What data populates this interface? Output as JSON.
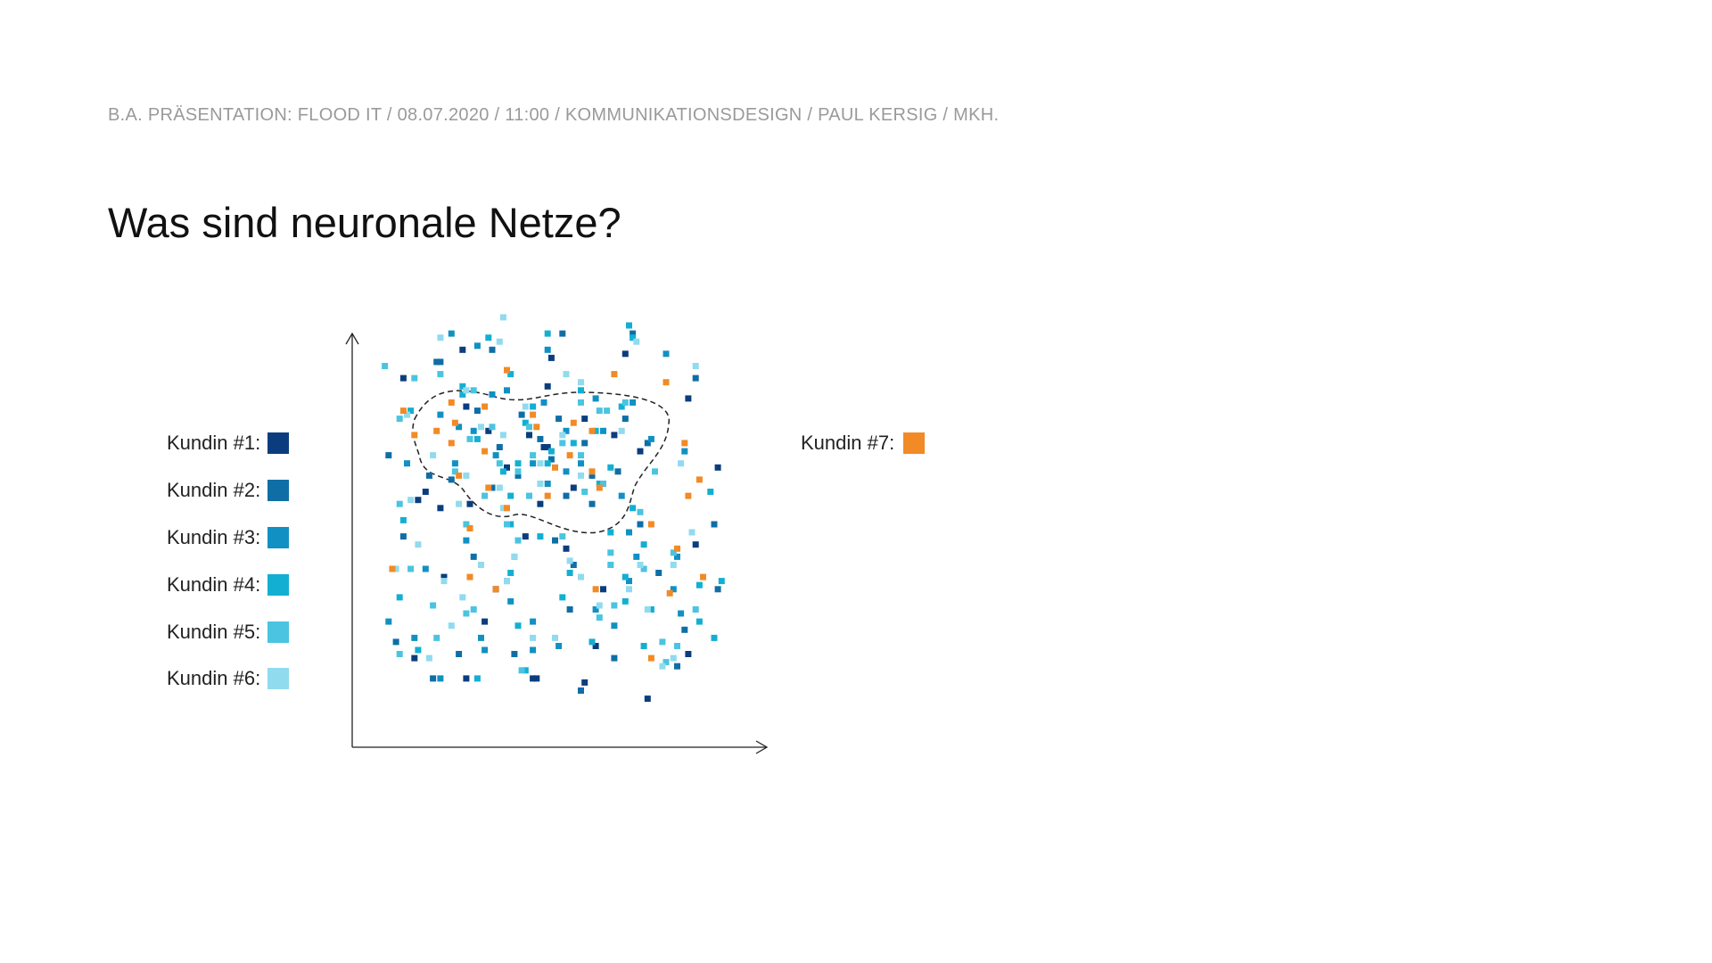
{
  "header": {
    "text": "B.A. PRÄSENTATION: FLOOD IT / 08.07.2020 / 11:00 / KOMMUNIKATIONSDESIGN / PAUL KERSIG / MKH."
  },
  "title": "Was sind neuronale Netze?",
  "legend": [
    {
      "label": "Kundin #1:",
      "color": "#0b3d7e"
    },
    {
      "label": "Kundin #2:",
      "color": "#0f6ea6"
    },
    {
      "label": "Kundin #3:",
      "color": "#1190c3"
    },
    {
      "label": "Kundin #4:",
      "color": "#13afd3"
    },
    {
      "label": "Kundin #5:",
      "color": "#4ac4e0"
    },
    {
      "label": "Kundin #6:",
      "color": "#90dbee"
    }
  ],
  "legend_highlight": {
    "label": "Kundin #7:",
    "color": "#f28a26"
  },
  "chart_data": {
    "type": "scatter",
    "title": "",
    "xlabel": "",
    "ylabel": "",
    "xlim": [
      0,
      100
    ],
    "ylim": [
      0,
      100
    ],
    "grid": false,
    "legend_placement": "left",
    "cluster_outline": "dashed closed curve around central cluster",
    "series": [
      {
        "name": "Kundin #1",
        "points": [
          [
            9,
            87
          ],
          [
            25,
            94
          ],
          [
            49,
            92
          ],
          [
            69,
            93
          ],
          [
            26,
            80
          ],
          [
            48,
            85
          ],
          [
            86,
            82
          ],
          [
            32,
            74
          ],
          [
            43,
            73
          ],
          [
            58,
            77
          ],
          [
            66,
            73
          ],
          [
            47,
            70
          ],
          [
            73,
            69
          ],
          [
            15,
            59
          ],
          [
            37,
            65
          ],
          [
            55,
            60
          ],
          [
            19,
            55
          ],
          [
            13,
            57
          ],
          [
            46,
            56
          ],
          [
            94,
            65
          ],
          [
            27,
            56
          ],
          [
            88,
            46
          ],
          [
            42,
            48
          ],
          [
            53,
            45
          ],
          [
            20,
            38
          ],
          [
            34,
            35
          ],
          [
            63,
            35
          ],
          [
            31,
            27
          ],
          [
            12,
            18
          ],
          [
            61,
            21
          ],
          [
            26,
            13
          ],
          [
            44,
            13
          ],
          [
            86,
            19
          ],
          [
            58,
            12
          ],
          [
            75,
            8
          ],
          [
            48,
            70
          ],
          [
            45,
            13
          ]
        ]
      },
      {
        "name": "Kundin #2",
        "points": [
          [
            18,
            91
          ],
          [
            33,
            94
          ],
          [
            52,
            98
          ],
          [
            71,
            98
          ],
          [
            88,
            87
          ],
          [
            19,
            91
          ],
          [
            29,
            79
          ],
          [
            41,
            78
          ],
          [
            51,
            77
          ],
          [
            58,
            71
          ],
          [
            69,
            77
          ],
          [
            35,
            70
          ],
          [
            46,
            72
          ],
          [
            75,
            71
          ],
          [
            22,
            62
          ],
          [
            40,
            63
          ],
          [
            49,
            67
          ],
          [
            60,
            63
          ],
          [
            67,
            64
          ],
          [
            33,
            60
          ],
          [
            53,
            58
          ],
          [
            60,
            56
          ],
          [
            5,
            68
          ],
          [
            16,
            63
          ],
          [
            73,
            51
          ],
          [
            50,
            47
          ],
          [
            93,
            51
          ],
          [
            9,
            48
          ],
          [
            28,
            43
          ],
          [
            55,
            41
          ],
          [
            73,
            41
          ],
          [
            78,
            39
          ],
          [
            7,
            22
          ],
          [
            24,
            19
          ],
          [
            39,
            19
          ],
          [
            54,
            30
          ],
          [
            85,
            25
          ],
          [
            94,
            35
          ],
          [
            17,
            13
          ],
          [
            57,
            10
          ],
          [
            66,
            18
          ],
          [
            83,
            16
          ]
        ]
      },
      {
        "name": "Kundin #3",
        "points": [
          [
            22,
            98
          ],
          [
            29,
            95
          ],
          [
            48,
            94
          ],
          [
            37,
            84
          ],
          [
            71,
            81
          ],
          [
            80,
            93
          ],
          [
            19,
            78
          ],
          [
            33,
            83
          ],
          [
            47,
            81
          ],
          [
            61,
            82
          ],
          [
            24,
            75
          ],
          [
            28,
            74
          ],
          [
            53,
            74
          ],
          [
            63,
            74
          ],
          [
            76,
            72
          ],
          [
            34,
            68
          ],
          [
            44,
            66
          ],
          [
            53,
            64
          ],
          [
            57,
            66
          ],
          [
            23,
            66
          ],
          [
            10,
            66
          ],
          [
            48,
            61
          ],
          [
            68,
            58
          ],
          [
            85,
            69
          ],
          [
            26,
            47
          ],
          [
            15,
            40
          ],
          [
            37,
            37
          ],
          [
            38,
            32
          ],
          [
            70,
            49
          ],
          [
            72,
            43
          ],
          [
            83,
            43
          ],
          [
            82,
            35
          ],
          [
            5,
            27
          ],
          [
            12,
            23
          ],
          [
            30,
            23
          ],
          [
            31,
            20
          ],
          [
            44,
            27
          ],
          [
            61,
            30
          ],
          [
            70,
            37
          ],
          [
            19,
            13
          ],
          [
            44,
            20
          ],
          [
            51,
            21
          ],
          [
            66,
            26
          ],
          [
            84,
            29
          ]
        ]
      },
      {
        "name": "Kundin #4",
        "points": [
          [
            32,
            97
          ],
          [
            48,
            98
          ],
          [
            70,
            100
          ],
          [
            38,
            88
          ],
          [
            44,
            80
          ],
          [
            71,
            97
          ],
          [
            57,
            84
          ],
          [
            25,
            83
          ],
          [
            11,
            79
          ],
          [
            25,
            85
          ],
          [
            42,
            76
          ],
          [
            68,
            80
          ],
          [
            49,
            69
          ],
          [
            55,
            71
          ],
          [
            61,
            74
          ],
          [
            36,
            64
          ],
          [
            40,
            66
          ],
          [
            48,
            66
          ],
          [
            65,
            65
          ],
          [
            29,
            72
          ],
          [
            38,
            58
          ],
          [
            62,
            61
          ],
          [
            71,
            55
          ],
          [
            92,
            59
          ],
          [
            9,
            52
          ],
          [
            38,
            51
          ],
          [
            46,
            48
          ],
          [
            65,
            49
          ],
          [
            74,
            46
          ],
          [
            89,
            36
          ],
          [
            95,
            37
          ],
          [
            38,
            39
          ],
          [
            54,
            39
          ],
          [
            69,
            38
          ],
          [
            8,
            33
          ],
          [
            13,
            20
          ],
          [
            40,
            26
          ],
          [
            52,
            33
          ],
          [
            69,
            32
          ],
          [
            76,
            30
          ],
          [
            89,
            27
          ],
          [
            29,
            13
          ],
          [
            42,
            15
          ],
          [
            60,
            22
          ],
          [
            74,
            21
          ],
          [
            93,
            23
          ]
        ]
      },
      {
        "name": "Kundin #5",
        "points": [
          [
            19,
            88
          ],
          [
            12,
            87
          ],
          [
            28,
            84
          ],
          [
            62,
            79
          ],
          [
            8,
            77
          ],
          [
            33,
            75
          ],
          [
            43,
            75
          ],
          [
            57,
            81
          ],
          [
            64,
            79
          ],
          [
            69,
            81
          ],
          [
            27,
            72
          ],
          [
            35,
            66
          ],
          [
            40,
            64
          ],
          [
            44,
            68
          ],
          [
            52,
            71
          ],
          [
            57,
            68
          ],
          [
            23,
            64
          ],
          [
            31,
            58
          ],
          [
            43,
            58
          ],
          [
            63,
            61
          ],
          [
            58,
            59
          ],
          [
            77,
            64
          ],
          [
            4,
            90
          ],
          [
            8,
            56
          ],
          [
            26,
            51
          ],
          [
            37,
            51
          ],
          [
            52,
            48
          ],
          [
            65,
            41
          ],
          [
            28,
            30
          ],
          [
            40,
            47
          ],
          [
            73,
            54
          ],
          [
            11,
            40
          ],
          [
            26,
            29
          ],
          [
            39,
            43
          ],
          [
            65,
            44
          ],
          [
            74,
            40
          ],
          [
            17,
            31
          ],
          [
            62,
            28
          ],
          [
            66,
            31
          ],
          [
            82,
            44
          ],
          [
            79,
            22
          ],
          [
            80,
            17
          ],
          [
            18,
            23
          ],
          [
            41,
            15
          ],
          [
            8,
            19
          ],
          [
            83,
            21
          ],
          [
            88,
            30
          ]
        ]
      },
      {
        "name": "Kundin #6",
        "points": [
          [
            36,
            102
          ],
          [
            19,
            97
          ],
          [
            35,
            96
          ],
          [
            53,
            88
          ],
          [
            72,
            96
          ],
          [
            88,
            90
          ],
          [
            10,
            78
          ],
          [
            26,
            84
          ],
          [
            17,
            68
          ],
          [
            30,
            75
          ],
          [
            42,
            80
          ],
          [
            57,
            86
          ],
          [
            36,
            73
          ],
          [
            52,
            73
          ],
          [
            68,
            74
          ],
          [
            26,
            63
          ],
          [
            24,
            56
          ],
          [
            35,
            60
          ],
          [
            36,
            55
          ],
          [
            46,
            66
          ],
          [
            46,
            61
          ],
          [
            57,
            63
          ],
          [
            84,
            66
          ],
          [
            87,
            49
          ],
          [
            11,
            57
          ],
          [
            13,
            46
          ],
          [
            7,
            40
          ],
          [
            30,
            41
          ],
          [
            39,
            43
          ],
          [
            54,
            42
          ],
          [
            62,
            31
          ],
          [
            37,
            37
          ],
          [
            57,
            38
          ],
          [
            73,
            41
          ],
          [
            20,
            37
          ],
          [
            25,
            33
          ],
          [
            82,
            41
          ],
          [
            70,
            35
          ],
          [
            22,
            26
          ],
          [
            75,
            30
          ],
          [
            50,
            23
          ],
          [
            16,
            18
          ],
          [
            44,
            23
          ],
          [
            79,
            16
          ],
          [
            82,
            18
          ]
        ]
      },
      {
        "name": "Kundin #7",
        "points": [
          [
            37,
            89
          ],
          [
            66,
            88
          ],
          [
            80,
            86
          ],
          [
            22,
            81
          ],
          [
            9,
            79
          ],
          [
            31,
            80
          ],
          [
            44,
            78
          ],
          [
            18,
            74
          ],
          [
            23,
            76
          ],
          [
            45,
            75
          ],
          [
            55,
            76
          ],
          [
            60,
            74
          ],
          [
            12,
            73
          ],
          [
            22,
            71
          ],
          [
            31,
            69
          ],
          [
            54,
            68
          ],
          [
            24,
            63
          ],
          [
            50,
            65
          ],
          [
            60,
            64
          ],
          [
            85,
            71
          ],
          [
            32,
            60
          ],
          [
            37,
            55
          ],
          [
            48,
            58
          ],
          [
            62,
            60
          ],
          [
            89,
            62
          ],
          [
            86,
            58
          ],
          [
            27,
            50
          ],
          [
            76,
            51
          ],
          [
            90,
            38
          ],
          [
            27,
            38
          ],
          [
            34,
            35
          ],
          [
            61,
            35
          ],
          [
            6,
            40
          ],
          [
            81,
            34
          ],
          [
            76,
            18
          ],
          [
            83,
            45
          ]
        ]
      }
    ]
  }
}
